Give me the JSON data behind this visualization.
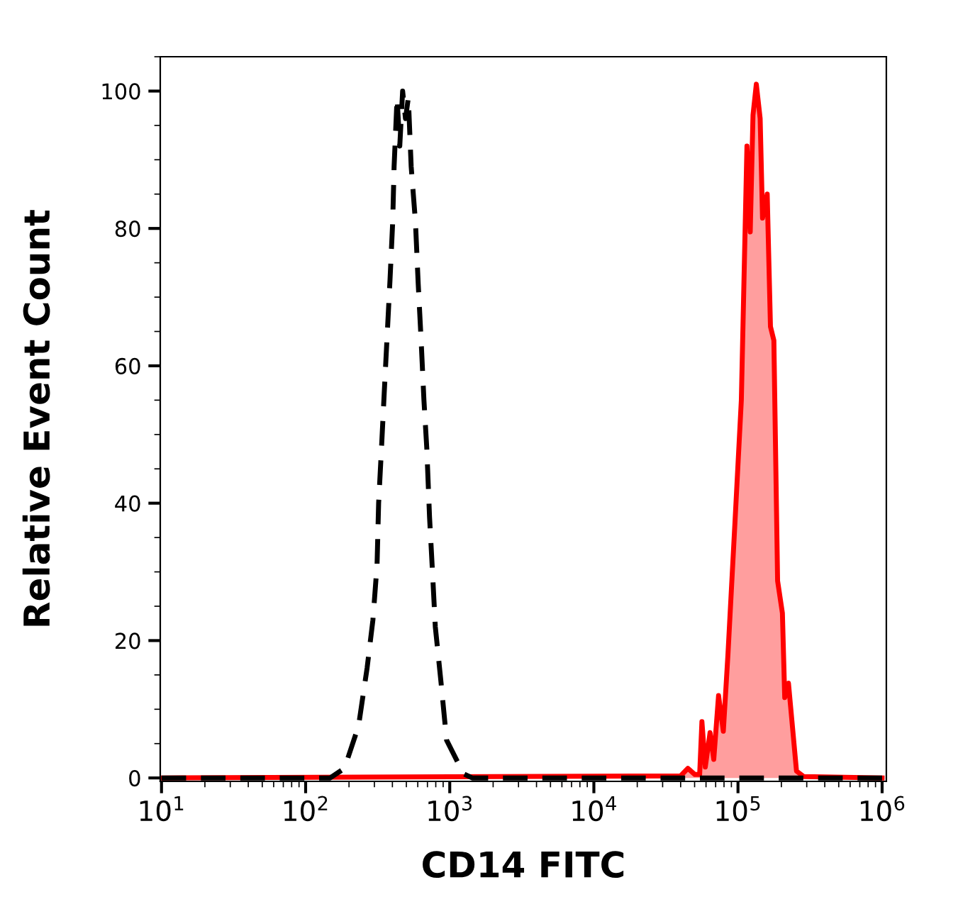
{
  "chart_data": {
    "type": "area",
    "xlabel": "CD14 FITC",
    "ylabel": "Relative Event Count",
    "log": "x",
    "grid": false,
    "legend": false,
    "xlim": [
      9.8,
      1070000
    ],
    "ylim": [
      -0.5,
      105
    ],
    "xticks": [
      {
        "value": 10,
        "label": "10$^{1}$"
      },
      {
        "value": 100,
        "label": "10$^{2}$"
      },
      {
        "value": 1000,
        "label": "10$^{3}$"
      },
      {
        "value": 10000,
        "label": "10$^{4}$"
      },
      {
        "value": 100000,
        "label": "10$^{5}$"
      },
      {
        "value": 1000000,
        "label": "10$^{6}$"
      }
    ],
    "yticks": [
      0,
      20,
      40,
      60,
      80,
      100
    ],
    "series": [
      {
        "color": "#ff0000",
        "line_style": "solid",
        "x": [
          10,
          40000,
          44900,
          50200,
          54200,
          56200,
          59300,
          64000,
          67900,
          73300,
          79100,
          85200,
          95500,
          105500,
          115400,
          121600,
          127100,
          134000,
          142500,
          148000,
          159500,
          168000,
          177400,
          188300,
          203300,
          211000,
          224000,
          254700,
          286000,
          1000000
        ],
        "values": [
          0,
          0.3,
          1.4,
          0.5,
          0.5,
          8.2,
          1.6,
          6.6,
          2.7,
          12,
          6.8,
          18,
          37.6,
          55,
          92,
          79.5,
          96.5,
          101,
          96,
          81.5,
          85,
          65.7,
          63.7,
          28.7,
          24,
          11.7,
          13.8,
          1,
          0.2,
          0
        ]
      },
      {
        "type": "line",
        "color": "#000000",
        "line_style": "dashed",
        "x": [
          10,
          130,
          148,
          186,
          233,
          267,
          293,
          313,
          321,
          336,
          351,
          367,
          385,
          402,
          411,
          431,
          450,
          471,
          493,
          516,
          540,
          578,
          604,
          632,
          662,
          693,
          724,
          759,
          794,
          869,
          951,
          1247,
          1432,
          1000000
        ],
        "values": [
          0,
          0,
          0,
          1.4,
          7.6,
          16,
          23,
          31,
          40,
          48,
          56,
          64,
          72.5,
          81,
          89,
          99,
          92,
          100,
          96,
          99,
          89,
          81,
          72,
          64,
          55,
          48,
          38,
          30,
          22,
          14,
          5.5,
          0.6,
          0,
          0
        ]
      }
    ]
  }
}
